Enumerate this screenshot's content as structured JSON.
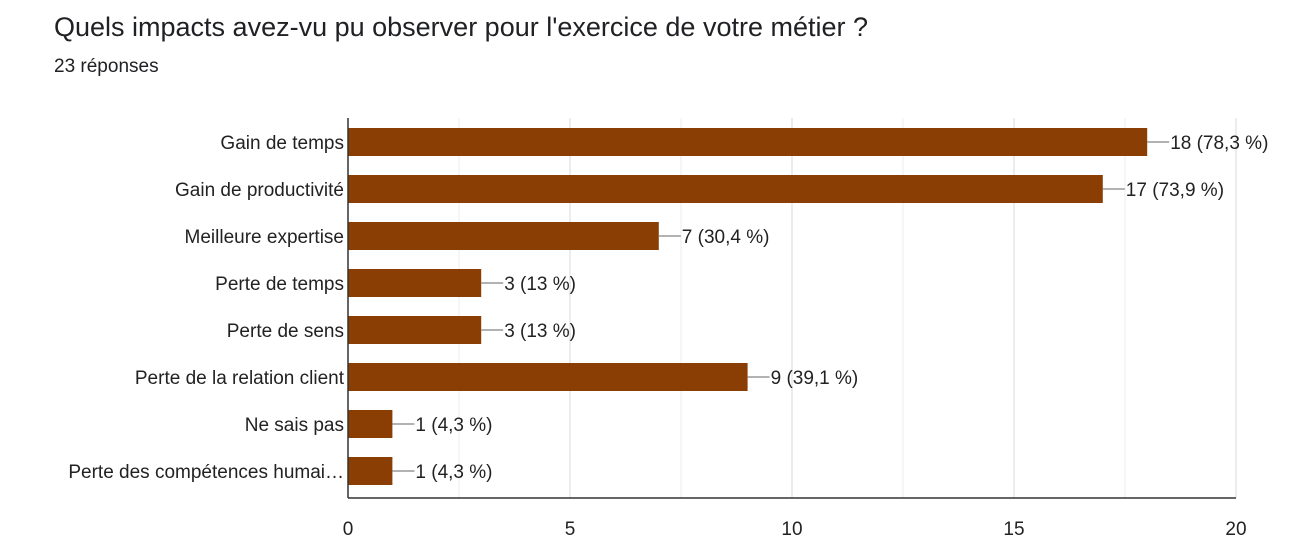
{
  "header": {
    "question": "Quels impacts avez-vu pu observer pour l'exercice de votre métier ?",
    "responses": "23 réponses"
  },
  "chart_data": {
    "type": "bar",
    "orientation": "horizontal",
    "categories": [
      "Gain de temps",
      "Gain de productivité",
      "Meilleure expertise",
      "Perte de temps",
      "Perte de sens",
      "Perte de la relation client",
      "Ne sais pas",
      "Perte des compétences humai…"
    ],
    "values": [
      18,
      17,
      7,
      3,
      3,
      9,
      1,
      1
    ],
    "value_labels": [
      "18 (78,3 %)",
      "17 (73,9 %)",
      "7 (30,4 %)",
      "3 (13 %)",
      "3 (13 %)",
      "9 (39,1 %)",
      "1 (4,3 %)",
      "1 (4,3 %)"
    ],
    "xlim": [
      0,
      20
    ],
    "x_ticks": [
      0,
      5,
      10,
      15,
      20
    ],
    "grid": true,
    "bar_color": "#8b3e03"
  }
}
